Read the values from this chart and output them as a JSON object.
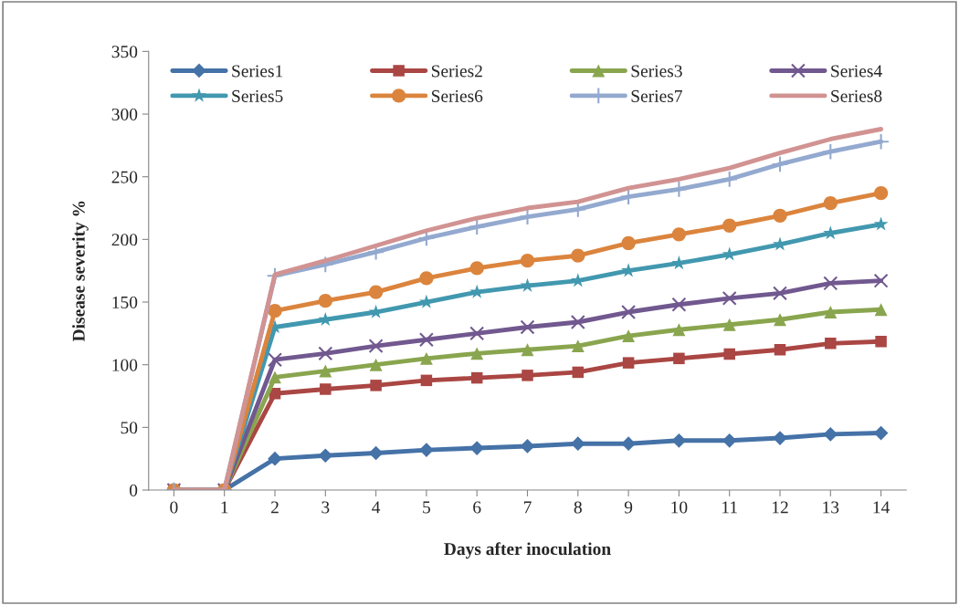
{
  "chart_data": {
    "type": "line",
    "xlabel": "Days after inoculation",
    "ylabel": "Disease severity %",
    "categories": [
      "0",
      "1",
      "2",
      "3",
      "4",
      "5",
      "6",
      "7",
      "8",
      "9",
      "10",
      "11",
      "12",
      "13",
      "14"
    ],
    "ylim": [
      0,
      350
    ],
    "yticks": [
      0,
      50,
      100,
      150,
      200,
      250,
      300,
      350
    ],
    "grid": false,
    "legend": "top",
    "series": [
      {
        "name": "Series1",
        "color": "#4572a7",
        "marker": "diamond",
        "values": [
          0,
          0,
          25,
          27.5,
          29.5,
          32,
          33.5,
          35,
          37,
          37,
          39.5,
          39.5,
          41.5,
          44.5,
          45.5
        ]
      },
      {
        "name": "Series2",
        "color": "#aa4643",
        "marker": "square",
        "values": [
          0,
          0,
          77,
          80.5,
          83.5,
          87.5,
          89.5,
          91.5,
          94,
          101.5,
          105,
          108.5,
          112,
          117,
          118.5
        ]
      },
      {
        "name": "Series3",
        "color": "#89a54e",
        "marker": "triangle",
        "values": [
          0,
          0,
          90,
          95,
          100,
          105,
          109,
          112,
          115,
          123,
          128,
          132,
          136,
          142,
          144
        ]
      },
      {
        "name": "Series4",
        "color": "#71588f",
        "marker": "x",
        "values": [
          0,
          0,
          104,
          109,
          115,
          120,
          125,
          130,
          134,
          142,
          148,
          153,
          157,
          165,
          167
        ]
      },
      {
        "name": "Series5",
        "color": "#4198af",
        "marker": "star",
        "values": [
          0,
          0,
          130,
          136,
          142,
          150,
          158,
          163,
          167,
          175,
          181,
          188,
          196,
          205,
          212
        ]
      },
      {
        "name": "Series6",
        "color": "#db843d",
        "marker": "circle",
        "values": [
          0,
          0,
          143,
          151,
          158,
          169,
          177,
          183,
          187,
          197,
          204,
          211,
          219,
          229,
          237
        ]
      },
      {
        "name": "Series7",
        "color": "#93a9cf",
        "marker": "plus",
        "values": [
          0,
          0,
          171,
          180,
          190,
          201,
          210,
          218,
          224,
          234,
          240,
          248,
          260,
          270,
          278
        ]
      },
      {
        "name": "Series8",
        "color": "#d19392",
        "marker": "none",
        "values": [
          0,
          0,
          172,
          183,
          195,
          207,
          217,
          225,
          230,
          241,
          248,
          257,
          269,
          280,
          288
        ]
      }
    ]
  }
}
